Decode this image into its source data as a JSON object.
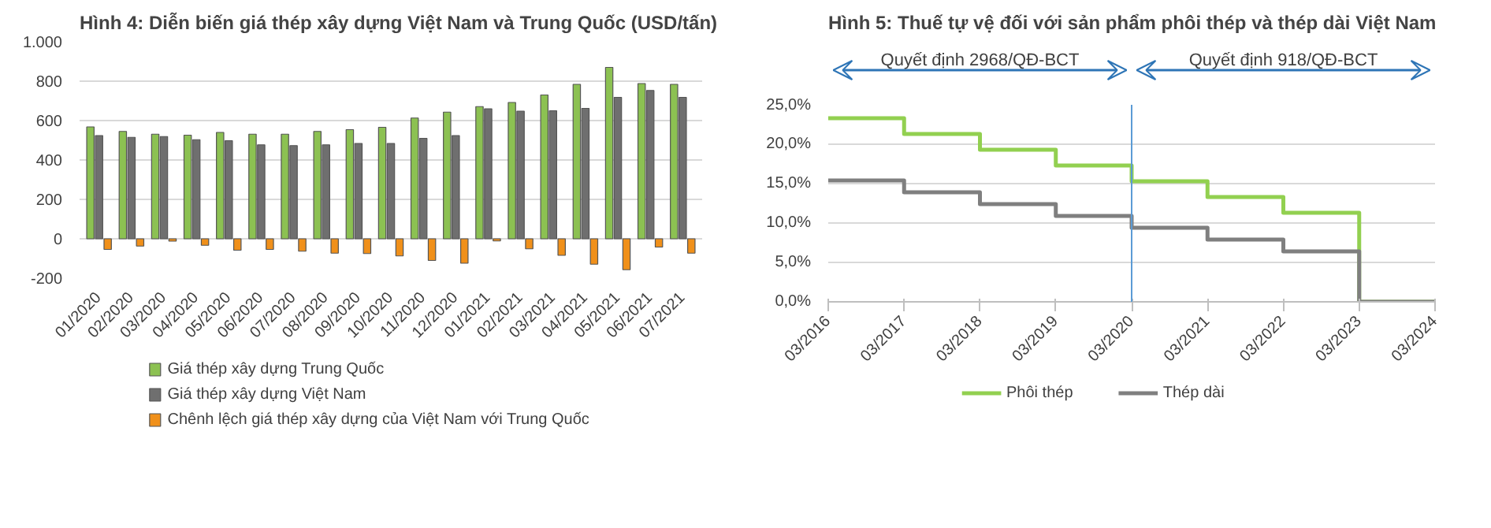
{
  "chart_data": [
    {
      "type": "bar",
      "title": "Hình 4: Diễn biến giá thép xây dựng Việt Nam và Trung Quốc (USD/tấn)",
      "categories": [
        "01/2020",
        "02/2020",
        "03/2020",
        "04/2020",
        "05/2020",
        "06/2020",
        "07/2020",
        "08/2020",
        "09/2020",
        "10/2020",
        "11/2020",
        "12/2020",
        "01/2021",
        "02/2021",
        "03/2021",
        "04/2021",
        "05/2021",
        "06/2021",
        "07/2021"
      ],
      "series": [
        {
          "name": "Giá thép xây dựng Trung Quốc",
          "color": "#8cc152",
          "values": [
            568,
            545,
            531,
            526,
            540,
            531,
            531,
            545,
            554,
            566,
            613,
            643,
            671,
            692,
            730,
            784,
            870,
            788,
            784
          ]
        },
        {
          "name": "Giá thép xây dựng Việt Nam",
          "color": "#6f6f6f",
          "values": [
            524,
            515,
            519,
            503,
            498,
            477,
            473,
            477,
            484,
            484,
            510,
            524,
            660,
            648,
            650,
            662,
            718,
            753,
            718
          ]
        },
        {
          "name": "Chênh lệch giá thép xây dựng của Việt Nam với Trung Quốc",
          "color": "#f0901a",
          "values": [
            -54,
            -37,
            -12,
            -33,
            -58,
            -54,
            -63,
            -73,
            -75,
            -87,
            -110,
            -124,
            -11,
            -51,
            -84,
            -129,
            -157,
            -42,
            -73
          ]
        }
      ],
      "ylim": [
        -200,
        1000
      ],
      "yticks": [
        -200,
        0,
        200,
        400,
        600,
        800,
        {
          "value": 1000,
          "label": "1.000"
        }
      ],
      "grid": "y",
      "legend": "bottom"
    },
    {
      "type": "step",
      "title": "Hình 5: Thuế tự vệ đối với sản phẩm phôi thép và thép dài Việt Nam",
      "x": [
        "2016-03",
        "2017-03",
        "2018-03",
        "2019-03",
        "2020-03",
        "2021-03",
        "2022-03",
        "2023-03",
        "2024-03"
      ],
      "series": [
        {
          "name": "Phôi thép",
          "color": "#92d050",
          "values": [
            23.3,
            21.3,
            19.3,
            17.3,
            15.3,
            13.3,
            11.3,
            0,
            0
          ]
        },
        {
          "name": "Thép dài",
          "color": "#7f7f7f",
          "values": [
            15.4,
            13.9,
            12.4,
            10.9,
            9.4,
            7.9,
            6.4,
            0,
            0
          ]
        }
      ],
      "xlim": [
        "2016-03",
        "2024-03"
      ],
      "xticks": [
        {
          "value": "2016-03",
          "label": "03/2016"
        },
        {
          "value": "2017-03",
          "label": "03/2017"
        },
        {
          "value": "2018-03",
          "label": "03/2018"
        },
        {
          "value": "2019-03",
          "label": "03/2019"
        },
        {
          "value": "2020-03",
          "label": "03/2020"
        },
        {
          "value": "2021-03",
          "label": "03/2021"
        },
        {
          "value": "2022-03",
          "label": "03/2022"
        },
        {
          "value": "2023-03",
          "label": "03/2023"
        },
        {
          "value": "2024-03",
          "label": "03/2024"
        }
      ],
      "ylim": [
        0,
        25
      ],
      "yticks": [
        {
          "value": 0,
          "label": "0,0%"
        },
        {
          "value": 5,
          "label": "5,0%"
        },
        {
          "value": 10,
          "label": "10,0%"
        },
        {
          "value": 15,
          "label": "15,0%"
        },
        {
          "value": 20,
          "label": "20,0%"
        },
        {
          "value": 25,
          "label": "25,0%"
        }
      ],
      "ref_lines": [
        {
          "axis": "x",
          "value": "2020-03",
          "color": "#5b9bd5"
        }
      ],
      "annotations": [
        "Quyết định 2968/QĐ-BCT",
        "Quyết định 918/QĐ-BCT"
      ],
      "grid": "y",
      "legend": "bottom",
      "line_style": "solid",
      "marker": "none"
    }
  ]
}
